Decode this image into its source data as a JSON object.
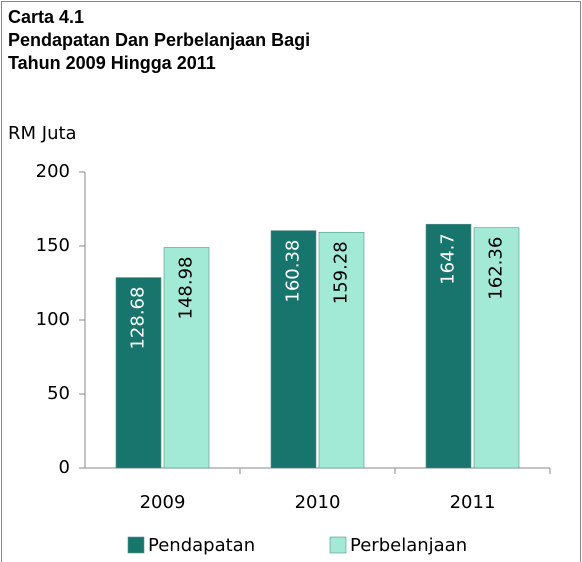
{
  "chart_data": {
    "type": "bar",
    "title": [
      "Carta 4.1",
      "Pendapatan Dan Perbelanjaan Bagi",
      "Tahun 2009 Hingga 2011"
    ],
    "y_label": "RM Juta",
    "categories": [
      "2009",
      "2010",
      "2011"
    ],
    "series": [
      {
        "name": "Pendapatan",
        "color": "#17756d",
        "values": [
          128.68,
          160.38,
          164.7
        ]
      },
      {
        "name": "Perbelanjaan",
        "color": "#a3ead6",
        "values": [
          148.98,
          159.28,
          162.36
        ]
      }
    ],
    "ylim": [
      0,
      200
    ],
    "yticks": [
      0,
      50,
      100,
      150,
      200
    ],
    "grid": false,
    "legend": "bottom"
  }
}
